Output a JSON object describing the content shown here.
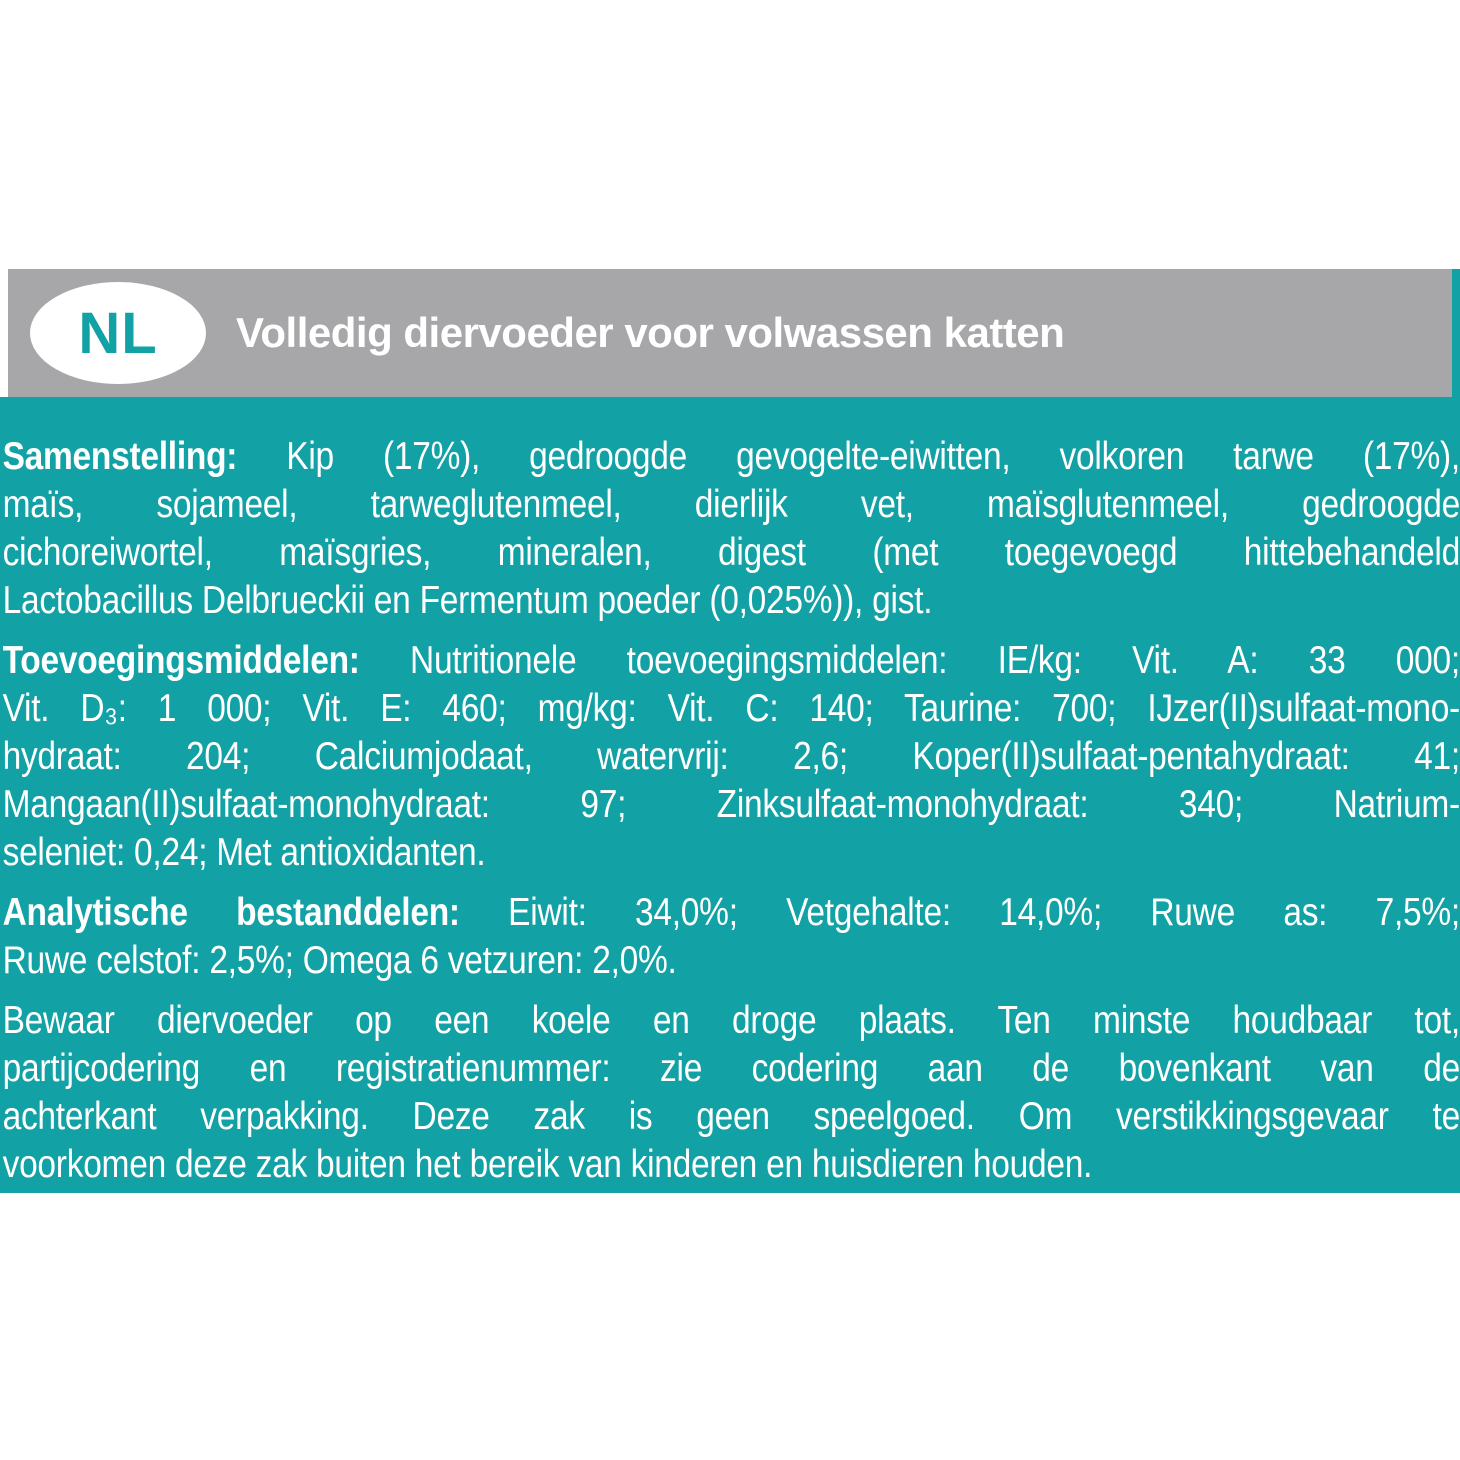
{
  "colors": {
    "teal": "#12a1a5",
    "gray": "#a7a7a9"
  },
  "header": {
    "language_badge": "NL",
    "title": "Volledig diervoeder voor volwassen katten"
  },
  "body": {
    "p1": {
      "heading": "Samenstelling:",
      "l1": " Kip (17%), gedroogde gevogelte-eiwitten, volkoren tarwe (17%),",
      "l2": "maïs, sojameel, tarweglutenmeel, dierlijk vet, maïsglutenmeel, gedroogde",
      "l3": "cichoreiwortel, maïsgries, mineralen, digest (met toegevoegd hittebehandeld",
      "l4": "Lactobacillus Delbrueckii en Fermentum poeder (0,025%)), gist."
    },
    "p2": {
      "heading": "Toevoegingsmiddelen:",
      "l1": " Nutritionele toevoegingsmiddelen: IE/kg: Vit. A: 33 000;",
      "l2": "Vit. D₃: 1 000; Vit. E: 460; mg/kg: Vit. C: 140; Taurine: 700; IJzer(II)sulfaat-mono-",
      "l3": "hydraat: 204; Calciumjodaat, watervrij: 2,6; Koper(II)sulfaat-pentahydraat: 41;",
      "l4": "Mangaan(II)sulfaat-monohydraat: 97; Zinksulfaat-monohydraat: 340; Natrium-",
      "l5": "seleniet: 0,24; Met antioxidanten."
    },
    "p3": {
      "heading": "Analytische bestanddelen:",
      "l1": " Eiwit: 34,0%; Vetgehalte: 14,0%; Ruwe as: 7,5%;",
      "l2": "Ruwe celstof: 2,5%; Omega 6 vetzuren: 2,0%."
    },
    "p4": {
      "l1": "Bewaar diervoeder op een koele en droge plaats. Ten minste houdbaar tot,",
      "l2": "partijcodering en registratienummer: zie codering aan de bovenkant van de",
      "l3": "achterkant verpakking. Deze zak is geen speelgoed. Om verstikkingsgevaar te",
      "l4": "voorkomen deze zak buiten het bereik van kinderen en huisdieren houden."
    }
  }
}
